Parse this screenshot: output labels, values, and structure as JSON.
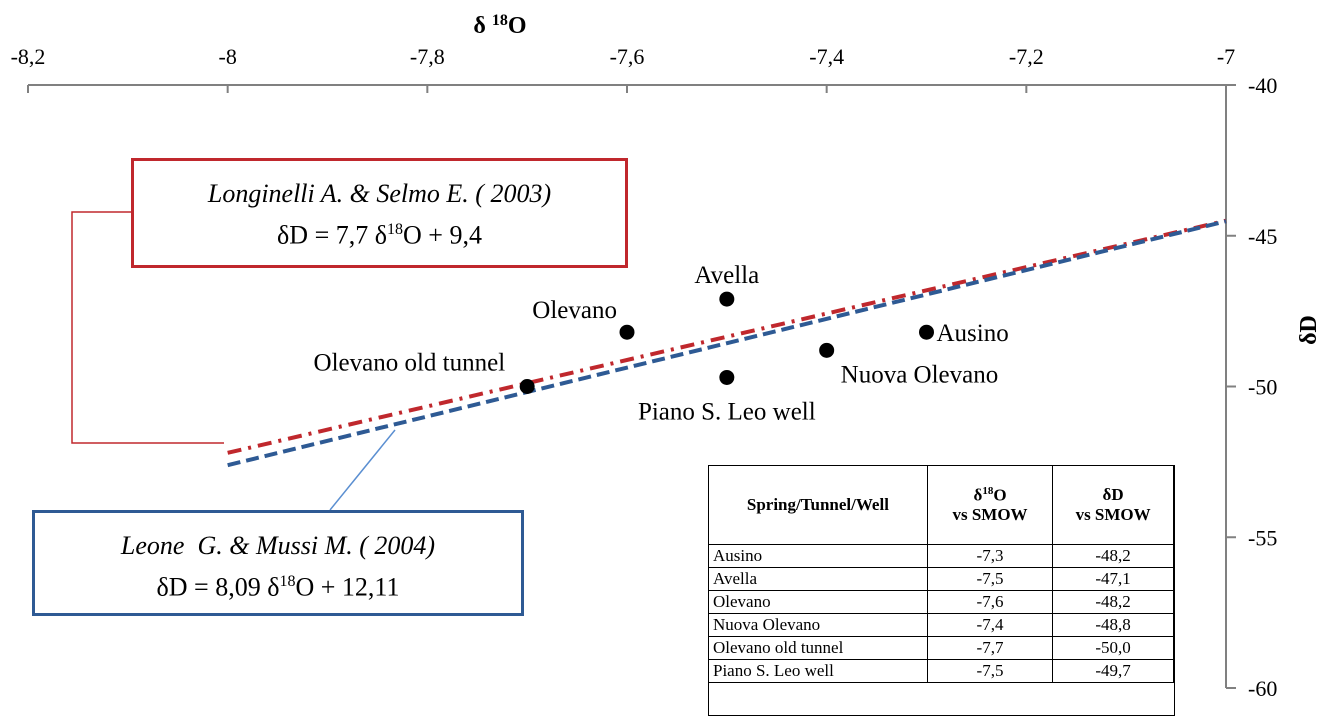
{
  "chart_data": {
    "type": "scatter",
    "xlabel_main": "δ",
    "xlabel_sup": "18",
    "xlabel_tail": "O",
    "ylabel": "δD",
    "xlim": [
      -8.2,
      -7
    ],
    "ylim": [
      -60,
      -40
    ],
    "x_axis_position": "top",
    "y_axis_position": "right",
    "x_ticks": [
      -8.2,
      -8,
      -7.8,
      -7.6,
      -7.4,
      -7.2,
      -7
    ],
    "x_tick_labels": [
      "-8,2",
      "-8",
      "-7,8",
      "-7,6",
      "-7,4",
      "-7,2",
      "-7"
    ],
    "y_ticks": [
      -40,
      -45,
      -50,
      -55,
      -60
    ],
    "y_tick_labels": [
      "-40",
      "-45",
      "-50",
      "-55",
      "-60"
    ],
    "points": [
      {
        "label": "Ausino",
        "x": -7.3,
        "y": -48.2
      },
      {
        "label": "Avella",
        "x": -7.5,
        "y": -47.1
      },
      {
        "label": "Olevano",
        "x": -7.6,
        "y": -48.2
      },
      {
        "label": "Nuova Olevano",
        "x": -7.4,
        "y": -48.8
      },
      {
        "label": "Olevano old tunnel",
        "x": -7.7,
        "y": -50.0
      },
      {
        "label": "Piano S. Leo well",
        "x": -7.5,
        "y": -49.7
      }
    ],
    "lines": [
      {
        "slope": 7.7,
        "intercept": 9.4,
        "x_range": [
          -8,
          -7
        ],
        "color": "#c0282d",
        "style": "dash-dot"
      },
      {
        "slope": 8.09,
        "intercept": 12.11,
        "x_range": [
          -8,
          -7
        ],
        "color": "#2e5a94",
        "style": "dashed"
      }
    ],
    "line_colors": {
      "red": "#c0282d",
      "blue": "#2e5a94",
      "axis": "#808080"
    }
  },
  "annotations": {
    "longinelli": {
      "author": "Longinelli A. & Selmo E. ( 2003)",
      "eq_prefix": "δD = 7,7 δ",
      "eq_sup": "18",
      "eq_suffix": "O + 9,4"
    },
    "leone": {
      "author": "Leone  G. & Mussi M. ( 2004)",
      "eq_prefix": "δD = 8,09 δ",
      "eq_sup": "18",
      "eq_suffix": "O + 12,11"
    }
  },
  "table": {
    "col1_header": "Spring/Tunnel/Well",
    "col2_header_a": "δ",
    "col2_header_sup": "18",
    "col2_header_b": "O",
    "col2_header_line2": "vs SMOW",
    "col3_header_line1": "δD",
    "col3_header_line2": "vs SMOW",
    "rows": [
      {
        "name": "Ausino",
        "o18": "-7,3",
        "dd": "-48,2"
      },
      {
        "name": "Avella",
        "o18": "-7,5",
        "dd": "-47,1"
      },
      {
        "name": "Olevano",
        "o18": "-7,6",
        "dd": "-48,2"
      },
      {
        "name": "Nuova Olevano",
        "o18": "-7,4",
        "dd": "-48,8"
      },
      {
        "name": "Olevano old tunnel",
        "o18": "-7,7",
        "dd": "-50,0"
      },
      {
        "name": "Piano S. Leo well",
        "o18": "-7,5",
        "dd": "-49,7"
      }
    ]
  }
}
